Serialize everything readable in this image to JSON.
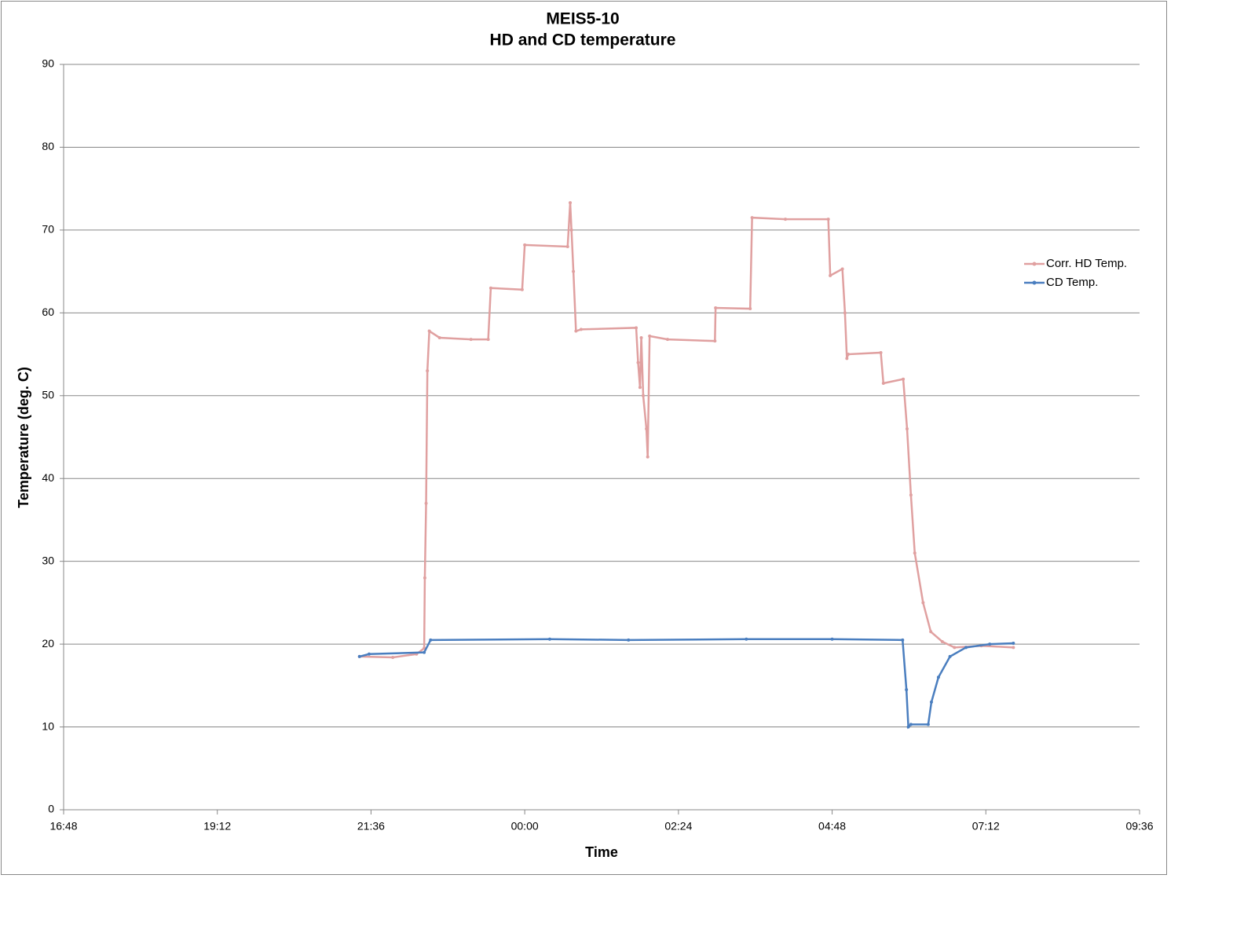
{
  "chart_data": {
    "type": "line",
    "title": "MEIS5-10",
    "subtitle": "HD and CD temperature",
    "x_label": "Time",
    "y_label": "Temperature (deg. C)",
    "xlim": [
      16.8,
      33.6
    ],
    "xticks": [
      {
        "value": 16.8,
        "label": "16:48"
      },
      {
        "value": 19.2,
        "label": "19:12"
      },
      {
        "value": 21.6,
        "label": "21:36"
      },
      {
        "value": 24,
        "label": "00:00"
      },
      {
        "value": 26.4,
        "label": "02:24"
      },
      {
        "value": 28.8,
        "label": "04:48"
      },
      {
        "value": 31.2,
        "label": "07:12"
      },
      {
        "value": 33.6,
        "label": "09:36"
      }
    ],
    "ylim": [
      0,
      90
    ],
    "yticks": [
      0,
      10,
      20,
      30,
      40,
      50,
      60,
      70,
      80,
      90
    ],
    "grid": true,
    "legend": "right",
    "series": [
      {
        "name": "Corr. HD Temp.",
        "color": "#e0a0a0",
        "x": [
          21.42,
          21.94,
          22.31,
          22.43,
          22.44,
          22.46,
          22.48,
          22.51,
          22.67,
          23.16,
          23.43,
          23.47,
          23.96,
          24.0,
          24.67,
          24.71,
          24.73,
          24.76,
          24.8,
          24.88,
          25.74,
          25.77,
          25.8,
          25.82,
          25.85,
          25.9,
          25.92,
          25.95,
          26.23,
          26.97,
          26.98,
          27.52,
          27.55,
          28.07,
          28.74,
          28.77,
          28.96,
          29.0,
          29.03,
          29.05,
          29.56,
          29.6,
          29.91,
          29.97,
          30.03,
          30.09,
          30.22,
          30.34,
          30.52,
          30.71,
          31.13,
          31.63
        ],
        "values": [
          18.5,
          18.4,
          18.8,
          19.5,
          28,
          37,
          53,
          57.8,
          57,
          56.8,
          56.8,
          63,
          62.8,
          68.2,
          68,
          73.3,
          70,
          65,
          57.8,
          58,
          58.2,
          54,
          51,
          57,
          50,
          46,
          42.6,
          57.2,
          56.8,
          56.6,
          60.6,
          60.5,
          71.5,
          71.3,
          71.3,
          64.5,
          65.3,
          60,
          54.5,
          55,
          55.2,
          51.5,
          52,
          46,
          38,
          31,
          25,
          21.5,
          20.3,
          19.6,
          19.8,
          19.6
        ]
      },
      {
        "name": "CD Temp.",
        "color": "#4a7ebf",
        "x": [
          21.42,
          21.57,
          22.43,
          22.53,
          24.39,
          25.62,
          27.46,
          28.8,
          29.9,
          29.96,
          29.99,
          30.03,
          30.3,
          30.35,
          30.46,
          30.64,
          30.89,
          31.26,
          31.63
        ],
        "values": [
          18.5,
          18.8,
          19,
          20.5,
          20.6,
          20.5,
          20.6,
          20.6,
          20.5,
          14.5,
          10,
          10.3,
          10.3,
          13,
          16,
          18.5,
          19.6,
          20,
          20.1
        ]
      }
    ]
  }
}
